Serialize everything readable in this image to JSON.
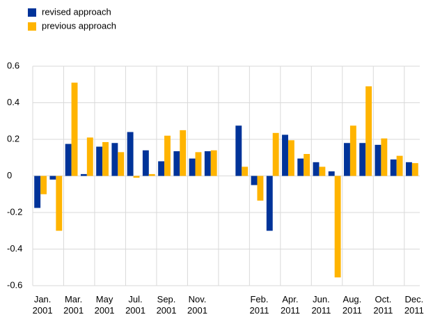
{
  "chart_data": {
    "type": "bar",
    "categories": [
      "Jan. 2001",
      null,
      "Mar. 2001",
      null,
      "May 2001",
      null,
      "Jul. 2001",
      null,
      "Sep. 2001",
      null,
      "Nov. 2001",
      null,
      null,
      null,
      "Feb. 2011",
      null,
      "Apr. 2011",
      null,
      "Jun. 2011",
      null,
      "Aug. 2011",
      null,
      "Oct. 2011",
      null,
      "Dec. 2011"
    ],
    "series": [
      {
        "name": "revised approach",
        "color": "#003399",
        "values": [
          -0.175,
          -0.02,
          0.175,
          0.01,
          0.16,
          0.18,
          0.24,
          0.14,
          0.08,
          0.135,
          0.095,
          0.135,
          null,
          0.275,
          -0.05,
          -0.3,
          0.225,
          0.095,
          0.075,
          0.025,
          0.18,
          0.18,
          0.17,
          0.09,
          0.075
        ]
      },
      {
        "name": "previous approach",
        "color": "#ffb400",
        "values": [
          -0.1,
          -0.3,
          0.51,
          0.21,
          0.185,
          0.13,
          -0.01,
          0.01,
          0.22,
          0.25,
          0.13,
          0.14,
          null,
          0.05,
          -0.135,
          0.235,
          0.195,
          0.12,
          0.05,
          -0.555,
          0.275,
          0.49,
          0.205,
          0.11,
          0.07
        ]
      }
    ],
    "ylim": [
      -0.6,
      0.6
    ],
    "yticks": [
      -0.6,
      -0.4,
      -0.2,
      0,
      0.2,
      0.4,
      0.6
    ],
    "grid": true
  }
}
